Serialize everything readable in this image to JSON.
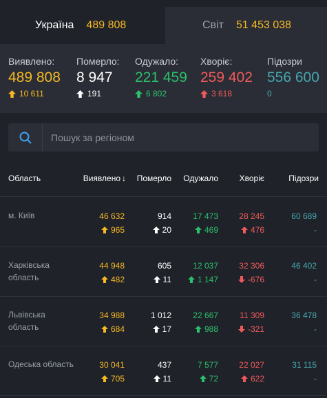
{
  "colors": {
    "confirmed": "#f6b924",
    "deaths": "#ffffff",
    "recovered": "#2bc06c",
    "sick": "#f05a5a",
    "suspected": "#47a8b0"
  },
  "tabs": [
    {
      "name": "Україна",
      "count": "489 808",
      "active": true
    },
    {
      "name": "Світ",
      "count": "51 453 038",
      "active": false
    }
  ],
  "stats": {
    "confirmed": {
      "label": "Виявлено:",
      "value": "489 808",
      "delta": "10 611",
      "icon": "arrow-up-icon"
    },
    "deaths": {
      "label": "Померло:",
      "value": "8 947",
      "delta": "191",
      "icon": "arrow-up-icon"
    },
    "recovered": {
      "label": "Одужало:",
      "value": "221 459",
      "delta": "6 802",
      "icon": "arrow-up-icon"
    },
    "sick": {
      "label": "Хворіє:",
      "value": "259 402",
      "delta": "3 618",
      "icon": "arrow-up-icon"
    },
    "suspected": {
      "label": "Підозри",
      "value": "556 600",
      "delta": "0"
    }
  },
  "search": {
    "placeholder": "Пошук за регіоном",
    "value": "",
    "icon": "search-icon"
  },
  "table": {
    "headers": {
      "region": "Область",
      "confirmed": "Виявлено",
      "sort_icon": "↓",
      "deaths": "Померло",
      "recovered": "Одужало",
      "sick": "Хворіє",
      "suspected": "Підозри"
    },
    "rows": [
      {
        "region": "м. Київ",
        "confirmed": "46 632",
        "confirmed_delta": "965",
        "deaths": "914",
        "deaths_delta": "20",
        "recovered": "17 473",
        "recovered_delta": "469",
        "sick": "28 245",
        "sick_delta": "476",
        "sick_dir": "up",
        "suspected": "60 689",
        "suspected_delta": "-"
      },
      {
        "region": "Харківська область",
        "confirmed": "44 948",
        "confirmed_delta": "482",
        "deaths": "605",
        "deaths_delta": "11",
        "recovered": "12 037",
        "recovered_delta": "1 147",
        "sick": "32 306",
        "sick_delta": "-676",
        "sick_dir": "down",
        "suspected": "46 402",
        "suspected_delta": "-"
      },
      {
        "region": "Львівська область",
        "confirmed": "34 988",
        "confirmed_delta": "684",
        "deaths": "1 012",
        "deaths_delta": "17",
        "recovered": "22 667",
        "recovered_delta": "988",
        "sick": "11 309",
        "sick_delta": "-321",
        "sick_dir": "down",
        "suspected": "36 478",
        "suspected_delta": "-"
      },
      {
        "region": "Одеська область",
        "confirmed": "30 041",
        "confirmed_delta": "705",
        "deaths": "437",
        "deaths_delta": "11",
        "recovered": "7 577",
        "recovered_delta": "72",
        "sick": "22 027",
        "sick_delta": "622",
        "sick_dir": "up",
        "suspected": "31 115",
        "suspected_delta": "-"
      }
    ]
  }
}
